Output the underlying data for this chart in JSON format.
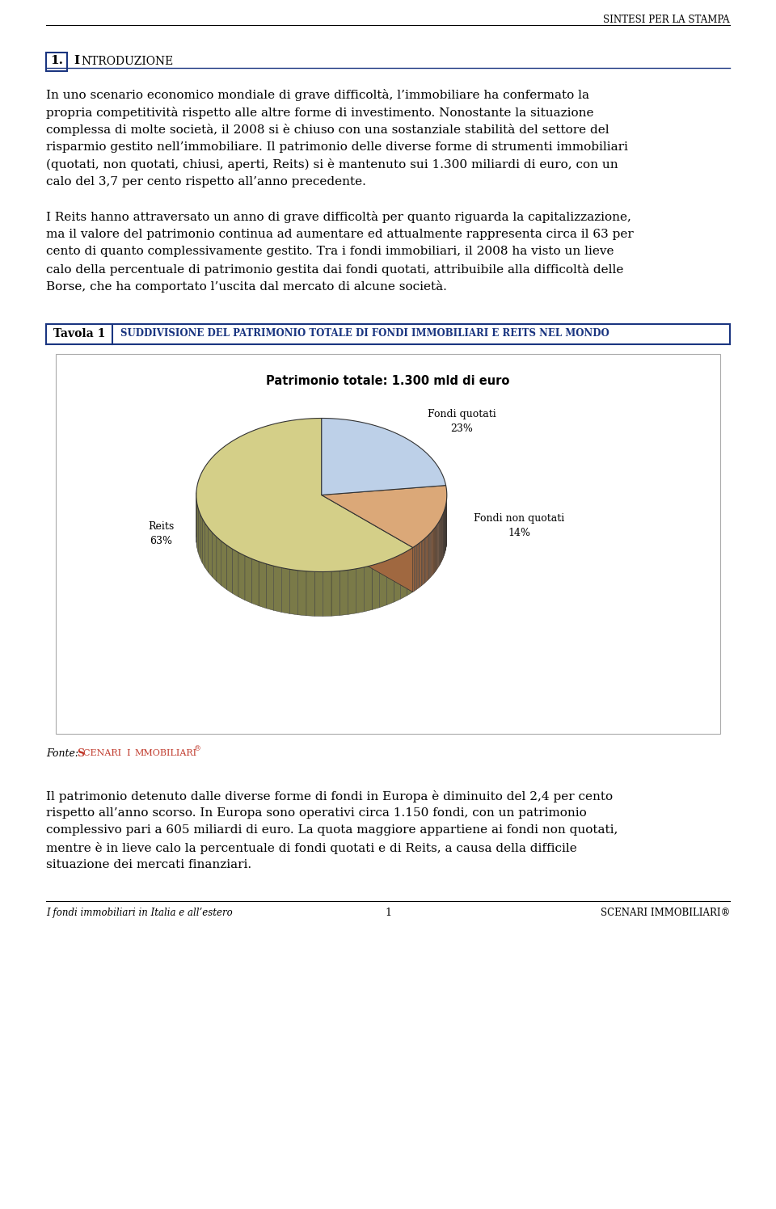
{
  "page_title": "SINTESI PER LA STAMPA",
  "section_num": "1.",
  "section_title": "INTRODUZIONE",
  "para1_lines": [
    "In uno scenario economico mondiale di grave difficoltà, l’immobiliare ha confermato la",
    "propria competitività rispetto alle altre forme di investimento. Nonostante la situazione",
    "complessa di molte società, il 2008 si è chiuso con una sostanziale stabilità del settore del",
    "risparmio gestito nell’immobiliare. Il patrimonio delle diverse forme di strumenti immobiliari",
    "(quotati, non quotati, chiusi, aperti, Reits) si è mantenuto sui 1.300 miliardi di euro, con un",
    "calo del 3,7 per cento rispetto all’anno precedente."
  ],
  "para2_lines": [
    "I Reits hanno attraversato un anno di grave difficoltà per quanto riguarda la capitalizzazione,",
    "ma il valore del patrimonio continua ad aumentare ed attualmente rappresenta circa il 63 per",
    "cento di quanto complessivamente gestito. Tra i fondi immobiliari, il 2008 ha visto un lieve",
    "calo della percentuale di patrimonio gestita dai fondi quotati, attribuibile alla difficoltà delle",
    "Borse, che ha comportato l’uscita dal mercato di alcune società."
  ],
  "tavola_num": "Tavola 1",
  "tavola_title": "SUDDIVISIONE DEL PATRIMONIO TOTALE DI FONDI IMMOBILIARI E REITS NEL MONDO",
  "chart_title": "Patrimonio totale: 1.300 mld di euro",
  "pie_sizes": [
    23,
    14,
    63
  ],
  "pie_labels": [
    "Fondi quotati",
    "Fondi non quotati",
    "Reits"
  ],
  "pie_pcts": [
    "23%",
    "14%",
    "63%"
  ],
  "pie_colors_top": [
    "#bdd0e8",
    "#dba878",
    "#d4cf88"
  ],
  "pie_colors_side": [
    "#6878a0",
    "#a06840",
    "#7a7a48"
  ],
  "pie_edge_color": "#333333",
  "pie_depth": 0.25,
  "pie_yscale": 0.55,
  "fonte_label": "Fonte:",
  "fonte_name": "SCENARI IMMOBILIARI",
  "fonte_superscript": "®",
  "para3_lines": [
    "Il patrimonio detenuto dalle diverse forme di fondi in Europa è diminuito del 2,4 per cento",
    "rispetto all’anno scorso. In Europa sono operativi circa 1.150 fondi, con un patrimonio",
    "complessivo pari a 605 miliardi di euro. La quota maggiore appartiene ai fondi non quotati,",
    "mentre è in lieve calo la percentuale di fondi quotati e di Reits, a causa della difficile",
    "situazione dei mercati finanziari."
  ],
  "footer_left": "I fondi immobiliari in Italia e all’estero",
  "footer_center": "1",
  "footer_right": "SCENARI IMMOBILIARI®",
  "bg_color": "#ffffff",
  "text_color": "#000000",
  "blue_color": "#1a3580",
  "red_color": "#c0392b",
  "lm": 57,
  "rm": 903,
  "lh": 21.5,
  "body_fs": 11.0
}
